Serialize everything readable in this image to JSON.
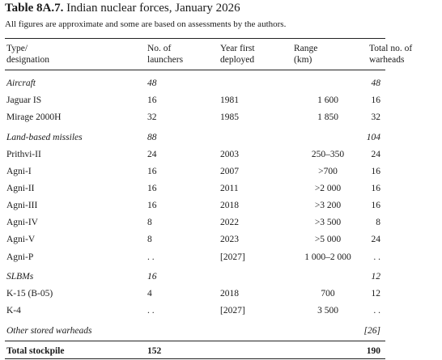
{
  "table": {
    "title_label": "Table 8A.7.",
    "title_text": "Indian nuclear forces, January 2026",
    "note": "All figures are approximate and some are based on assessments by the authors.",
    "columns": [
      {
        "lines": [
          "Type/",
          "designation"
        ]
      },
      {
        "lines": [
          "No. of",
          "launchers"
        ]
      },
      {
        "lines": [
          "Year first",
          "deployed"
        ]
      },
      {
        "lines": [
          "Range",
          "(km)"
        ]
      },
      {
        "lines": [
          "Total no. of",
          "warheads"
        ]
      }
    ],
    "rows": [
      {
        "style": "group",
        "cells": [
          "Aircraft",
          "48",
          null,
          null,
          "48"
        ]
      },
      {
        "style": "item",
        "cells": [
          "Jaguar IS",
          "16",
          "1981",
          "1 600",
          "16"
        ]
      },
      {
        "style": "item",
        "cells": [
          "Mirage 2000H",
          "32",
          "1985",
          "1 850",
          "32"
        ]
      },
      {
        "style": "group",
        "cells": [
          "Land-based missiles",
          "88",
          null,
          null,
          "104"
        ]
      },
      {
        "style": "item",
        "cells": [
          "Prithvi-II",
          "24",
          "2003",
          "250–350",
          "24"
        ]
      },
      {
        "style": "item",
        "cells": [
          "Agni-I",
          "16",
          "2007",
          ">700",
          "16"
        ]
      },
      {
        "style": "item",
        "cells": [
          "Agni-II",
          "16",
          "2011",
          ">2 000",
          "16"
        ]
      },
      {
        "style": "item",
        "cells": [
          "Agni-III",
          "16",
          "2018",
          ">3 200",
          "16"
        ]
      },
      {
        "style": "item",
        "cells": [
          "Agni-IV",
          "8",
          "2022",
          ">3 500",
          "8"
        ]
      },
      {
        "style": "item",
        "cells": [
          "Agni-V",
          "8",
          "2023",
          ">5 000",
          "24"
        ]
      },
      {
        "style": "item",
        "cells": [
          "Agni-P",
          ". .",
          "[2027]",
          "1 000–2 000",
          ". ."
        ]
      },
      {
        "style": "group",
        "cells": [
          "SLBMs",
          "16",
          null,
          null,
          "12"
        ]
      },
      {
        "style": "item",
        "cells": [
          "K-15 (B-05)",
          "4",
          "2018",
          "700",
          "12"
        ]
      },
      {
        "style": "item",
        "cells": [
          "K-4",
          ". .",
          "[2027]",
          "3 500",
          ". ."
        ]
      },
      {
        "style": "group",
        "cells": [
          "Other stored warheads",
          null,
          null,
          null,
          "[26]"
        ]
      },
      {
        "style": "total",
        "cells": [
          "Total stockpile",
          "152",
          null,
          null,
          "190"
        ]
      }
    ]
  }
}
